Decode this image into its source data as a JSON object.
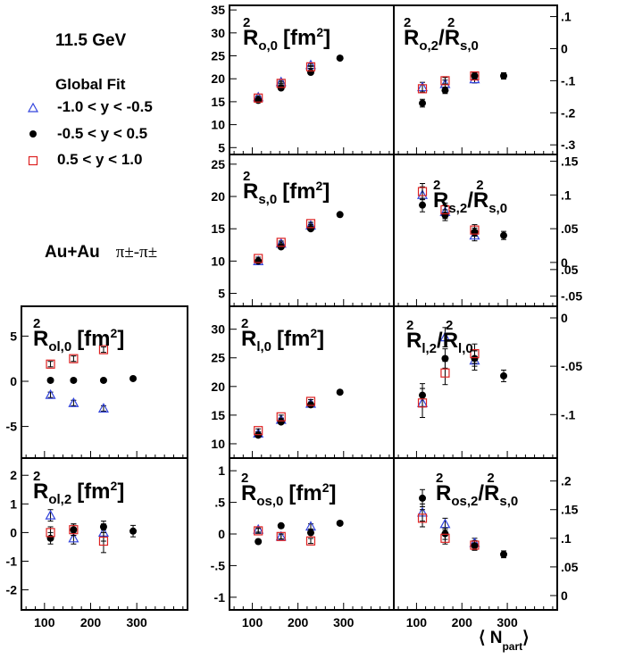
{
  "legend": {
    "energy": "11.5 GeV",
    "header": "Global Fit",
    "entries": [
      {
        "label": "-1.0 < y < -0.5",
        "marker": "open-triangle",
        "color": "#3344dd"
      },
      {
        "label": "-0.5 < y < 0.5",
        "marker": "filled-circle",
        "color": "#000000"
      },
      {
        "label": "0.5 < y < 1.0",
        "marker": "open-square",
        "color": "#dd2222"
      }
    ]
  },
  "system_label": "Au+Au",
  "pion_label": "π±-π±",
  "xaxis_title": {
    "open": "⟨",
    "main": "N",
    "sub": "part",
    "close": "⟩"
  },
  "chart_data": [
    {
      "id": "ro0",
      "type": "scatter",
      "title": {
        "main": "R",
        "sup": "2",
        "sub": "o,0",
        "unit": "[fm",
        "unit_sup": "2",
        "unit_close": "]"
      },
      "xlim": [
        50,
        410
      ],
      "ylim": [
        3.5,
        36
      ],
      "x_ticks": [
        100,
        200,
        300
      ],
      "y_ticks": [
        5,
        10,
        15,
        20,
        25,
        30,
        35
      ],
      "y_axis_side": "left",
      "series": [
        {
          "x": [
            113,
            163,
            228
          ],
          "y": [
            16.0,
            19.3,
            23.0
          ],
          "err": [
            0.3,
            0.3,
            0.3
          ]
        },
        {
          "x": [
            113,
            163,
            228,
            292
          ],
          "y": [
            15.3,
            18.0,
            21.4,
            24.5
          ],
          "err": [
            0.3,
            0.3,
            0.3,
            0.3
          ]
        },
        {
          "x": [
            113,
            163,
            228
          ],
          "y": [
            15.8,
            19.0,
            22.6
          ],
          "err": [
            0.3,
            0.3,
            0.3
          ]
        }
      ]
    },
    {
      "id": "ro2",
      "type": "scatter",
      "title": {
        "main": "R",
        "sup": "2",
        "sub": "o,2",
        "ratio": "/R",
        "ratio_sup": "2",
        "ratio_sub": "s,0"
      },
      "xlim": [
        50,
        410
      ],
      "ylim": [
        -0.33,
        0.135
      ],
      "x_ticks": [
        100,
        200,
        300
      ],
      "y_ticks": [
        -0.3,
        -0.2,
        -0.1,
        0,
        0.1
      ],
      "y_axis_side": "right",
      "series": [
        {
          "x": [
            113,
            163,
            228
          ],
          "y": [
            -0.12,
            -0.11,
            -0.095
          ],
          "err": [
            0.015,
            0.012,
            0.012
          ]
        },
        {
          "x": [
            113,
            163,
            228,
            292
          ],
          "y": [
            -0.17,
            -0.13,
            -0.085,
            -0.085
          ],
          "err": [
            0.012,
            0.01,
            0.01,
            0.01
          ]
        },
        {
          "x": [
            113,
            163,
            228
          ],
          "y": [
            -0.125,
            -0.1,
            -0.085
          ],
          "err": [
            0.012,
            0.01,
            0.01
          ]
        }
      ]
    },
    {
      "id": "rs0",
      "type": "scatter",
      "title": {
        "main": "R",
        "sup": "2",
        "sub": "s,0",
        "unit": "[fm",
        "unit_sup": "2",
        "unit_close": "]"
      },
      "xlim": [
        50,
        410
      ],
      "ylim": [
        3,
        26.5
      ],
      "x_ticks": [
        100,
        200,
        300
      ],
      "y_ticks": [
        5,
        10,
        15,
        20,
        25
      ],
      "y_axis_side": "left",
      "series": [
        {
          "x": [
            113,
            163,
            228
          ],
          "y": [
            10.0,
            12.7,
            15.5
          ],
          "err": [
            0.2,
            0.2,
            0.2
          ]
        },
        {
          "x": [
            113,
            163,
            228,
            292
          ],
          "y": [
            10.0,
            12.2,
            15.0,
            17.2
          ],
          "err": [
            0.2,
            0.2,
            0.2,
            0.2
          ]
        },
        {
          "x": [
            113,
            163,
            228
          ],
          "y": [
            10.4,
            12.9,
            15.8
          ],
          "err": [
            0.2,
            0.2,
            0.2
          ]
        }
      ]
    },
    {
      "id": "rs2",
      "type": "scatter",
      "title": {
        "main": "R",
        "sup": "2",
        "sub": "s,2",
        "ratio": "/R",
        "ratio_sup": "2",
        "ratio_sub": "s,0"
      },
      "xlim": [
        50,
        410
      ],
      "ylim": [
        -0.065,
        0.16
      ],
      "x_ticks": [
        100,
        200,
        300
      ],
      "y_ticks": [
        -0.05,
        0,
        0.05,
        0.1,
        0.15
      ],
      "y_axis_side": "right",
      "series": [
        {
          "x": [
            113,
            163,
            228
          ],
          "y": [
            0.1,
            0.075,
            0.04
          ],
          "err": [
            0.012,
            0.01,
            0.008
          ]
        },
        {
          "x": [
            113,
            163,
            228,
            292
          ],
          "y": [
            0.085,
            0.07,
            0.045,
            0.04
          ],
          "err": [
            0.01,
            0.008,
            0.006,
            0.006
          ]
        },
        {
          "x": [
            113,
            163,
            228
          ],
          "y": [
            0.105,
            0.078,
            0.048
          ],
          "err": [
            0.012,
            0.01,
            0.008
          ]
        }
      ]
    },
    {
      "id": "rol0",
      "type": "scatter",
      "title": {
        "main": "R",
        "sup": "2",
        "sub": "ol,0",
        "unit": "[fm",
        "unit_sup": "2",
        "unit_close": "]"
      },
      "xlim": [
        50,
        410
      ],
      "ylim": [
        -8.5,
        8.3
      ],
      "x_ticks": [
        100,
        200,
        300
      ],
      "y_ticks": [
        -5,
        0,
        5
      ],
      "y_axis_side": "left",
      "series": [
        {
          "x": [
            113,
            163,
            228
          ],
          "y": [
            -1.5,
            -2.4,
            -3.0
          ],
          "err": [
            0.3,
            0.3,
            0.3
          ]
        },
        {
          "x": [
            113,
            163,
            228,
            292
          ],
          "y": [
            0.1,
            0.1,
            0.1,
            0.3
          ],
          "err": [
            0.2,
            0.2,
            0.2,
            0.2
          ]
        },
        {
          "x": [
            113,
            163,
            228
          ],
          "y": [
            1.9,
            2.5,
            3.5
          ],
          "err": [
            0.3,
            0.3,
            0.3
          ]
        }
      ]
    },
    {
      "id": "rl0",
      "type": "scatter",
      "title": {
        "main": "R",
        "sup": "2",
        "sub": "l,0",
        "unit": "[fm",
        "unit_sup": "2",
        "unit_close": "]"
      },
      "xlim": [
        50,
        410
      ],
      "ylim": [
        7.5,
        34
      ],
      "x_ticks": [
        100,
        200,
        300
      ],
      "y_ticks": [
        10,
        15,
        20,
        25,
        30
      ],
      "y_axis_side": "left",
      "series": [
        {
          "x": [
            113,
            163,
            228
          ],
          "y": [
            11.8,
            14.2,
            17.0
          ],
          "err": [
            0.3,
            0.3,
            0.3
          ]
        },
        {
          "x": [
            113,
            163,
            228,
            292
          ],
          "y": [
            11.5,
            13.8,
            16.8,
            19.0
          ],
          "err": [
            0.3,
            0.3,
            0.3,
            0.3
          ]
        },
        {
          "x": [
            113,
            163,
            228
          ],
          "y": [
            12.3,
            14.7,
            17.4
          ],
          "err": [
            0.3,
            0.3,
            0.3
          ]
        }
      ]
    },
    {
      "id": "rl2",
      "type": "scatter",
      "title": {
        "main": "R",
        "sup": "2",
        "sub": "l,2",
        "ratio": "/R",
        "ratio_sup": "2",
        "ratio_sub": "l,0"
      },
      "xlim": [
        50,
        410
      ],
      "ylim": [
        -0.145,
        0.012
      ],
      "x_ticks": [
        100,
        200,
        300
      ],
      "y_ticks": [
        -0.1,
        -0.05,
        0,
        0.05
      ],
      "y_axis_side": "right",
      "series": [
        {
          "x": [
            113,
            163,
            228
          ],
          "y": [
            -0.088,
            -0.02,
            -0.044
          ],
          "err": [
            0.015,
            0.01,
            0.01
          ]
        },
        {
          "x": [
            113,
            163,
            228,
            292
          ],
          "y": [
            -0.08,
            -0.042,
            -0.042,
            -0.06
          ],
          "err": [
            0.012,
            0.01,
            0.008,
            0.006
          ]
        },
        {
          "x": [
            113,
            163,
            228
          ],
          "y": [
            -0.088,
            -0.057,
            -0.037
          ],
          "err": [
            0.015,
            0.012,
            0.01
          ]
        }
      ]
    },
    {
      "id": "rol2",
      "type": "scatter",
      "title": {
        "main": "R",
        "sup": "2",
        "sub": "ol,2",
        "unit": "[fm",
        "unit_sup": "2",
        "unit_close": "]"
      },
      "xlim": [
        50,
        410
      ],
      "ylim": [
        -2.7,
        2.6
      ],
      "x_ticks": [
        100,
        200,
        300
      ],
      "y_ticks": [
        -2,
        -1,
        0,
        1,
        2
      ],
      "y_axis_side": "left",
      "series": [
        {
          "x": [
            113,
            163,
            228
          ],
          "y": [
            0.6,
            -0.2,
            0.0
          ],
          "err": [
            0.2,
            0.2,
            0.3
          ]
        },
        {
          "x": [
            113,
            163,
            228,
            292
          ],
          "y": [
            -0.2,
            0.1,
            0.2,
            0.05
          ],
          "err": [
            0.2,
            0.2,
            0.2,
            0.2
          ]
        },
        {
          "x": [
            113,
            163,
            228
          ],
          "y": [
            0.0,
            0.1,
            -0.3
          ],
          "err": [
            0.2,
            0.2,
            0.4
          ]
        }
      ]
    },
    {
      "id": "ros0",
      "type": "scatter",
      "title": {
        "main": "R",
        "sup": "2",
        "sub": "os,0",
        "unit": "[fm",
        "unit_sup": "2",
        "unit_close": "]"
      },
      "xlim": [
        50,
        410
      ],
      "ylim": [
        -1.2,
        1.2
      ],
      "x_ticks": [
        100,
        200,
        300
      ],
      "y_ticks": [
        -1,
        -0.5,
        0,
        0.5,
        1
      ],
      "y_axis_side": "left",
      "series": [
        {
          "x": [
            113,
            163,
            228
          ],
          "y": [
            0.07,
            -0.04,
            0.12
          ],
          "err": [
            0.04,
            0.04,
            0.04
          ]
        },
        {
          "x": [
            113,
            163,
            228,
            292
          ],
          "y": [
            -0.12,
            0.13,
            0.02,
            0.17
          ],
          "err": [
            0.03,
            0.03,
            0.03,
            0.03
          ]
        },
        {
          "x": [
            113,
            163,
            228
          ],
          "y": [
            0.05,
            -0.04,
            -0.11
          ],
          "err": [
            0.04,
            0.04,
            0.04
          ]
        }
      ]
    },
    {
      "id": "ros2",
      "type": "scatter",
      "title": {
        "main": "R",
        "sup": "2",
        "sub": "os,2",
        "ratio": "/R",
        "ratio_sup": "2",
        "ratio_sub": "s,0"
      },
      "xlim": [
        50,
        410
      ],
      "ylim": [
        -0.025,
        0.24
      ],
      "x_ticks": [
        100,
        200,
        300
      ],
      "y_ticks": [
        0,
        0.05,
        0.1,
        0.15,
        0.2
      ],
      "y_axis_side": "right",
      "series": [
        {
          "x": [
            113,
            163,
            228
          ],
          "y": [
            0.145,
            0.125,
            0.092
          ],
          "err": [
            0.015,
            0.01,
            0.008
          ]
        },
        {
          "x": [
            113,
            163,
            228,
            292
          ],
          "y": [
            0.17,
            0.108,
            0.087,
            0.072
          ],
          "err": [
            0.015,
            0.01,
            0.008,
            0.006
          ]
        },
        {
          "x": [
            113,
            163,
            228
          ],
          "y": [
            0.135,
            0.1,
            0.088
          ],
          "err": [
            0.015,
            0.01,
            0.008
          ]
        }
      ]
    }
  ]
}
